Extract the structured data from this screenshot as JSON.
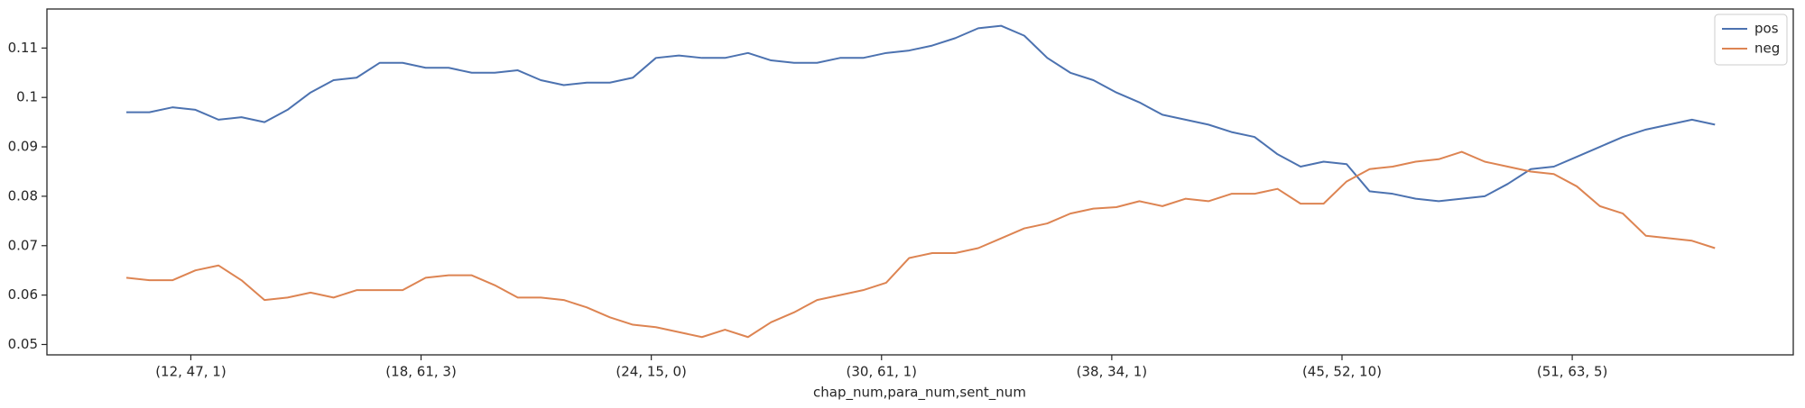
{
  "chart_data": {
    "type": "line",
    "xlabel": "chap_num,para_num,sent_num",
    "x": [
      0,
      20,
      40,
      60,
      80,
      100,
      120,
      140,
      160,
      180,
      200,
      220,
      240,
      260,
      280,
      300,
      320,
      340,
      360,
      380,
      400,
      420,
      440,
      460,
      480,
      500,
      520,
      540,
      560,
      580,
      600,
      620,
      640,
      660,
      680,
      700,
      720,
      740,
      760,
      780,
      800,
      820,
      840,
      860,
      880,
      900,
      920,
      940,
      960,
      980,
      1000,
      1020,
      1040,
      1060,
      1080,
      1100,
      1120,
      1140,
      1160,
      1180,
      1200,
      1220,
      1240,
      1260,
      1280,
      1300,
      1320,
      1340,
      1360,
      1380
    ],
    "series": [
      {
        "name": "pos",
        "color": "#4c72b0",
        "values": [
          0.097,
          0.097,
          0.098,
          0.0975,
          0.0955,
          0.096,
          0.095,
          0.0975,
          0.101,
          0.1035,
          0.104,
          0.107,
          0.107,
          0.106,
          0.106,
          0.105,
          0.105,
          0.1055,
          0.1035,
          0.1025,
          0.103,
          0.103,
          0.104,
          0.108,
          0.1085,
          0.108,
          0.108,
          0.109,
          0.1075,
          0.107,
          0.107,
          0.108,
          0.108,
          0.109,
          0.1095,
          0.1105,
          0.112,
          0.114,
          0.1145,
          0.1125,
          0.108,
          0.105,
          0.1035,
          0.101,
          0.099,
          0.0965,
          0.0955,
          0.0945,
          0.093,
          0.092,
          0.0885,
          0.086,
          0.087,
          0.0865,
          0.081,
          0.0805,
          0.0795,
          0.079,
          0.0795,
          0.08,
          0.0825,
          0.0855,
          0.086,
          0.088,
          0.09,
          0.092,
          0.0935,
          0.0945,
          0.0955,
          0.0945
        ]
      },
      {
        "name": "neg",
        "color": "#dd8452",
        "values": [
          0.0635,
          0.063,
          0.063,
          0.065,
          0.066,
          0.063,
          0.059,
          0.0595,
          0.0605,
          0.0595,
          0.061,
          0.061,
          0.061,
          0.0635,
          0.064,
          0.064,
          0.062,
          0.0595,
          0.0595,
          0.059,
          0.0575,
          0.0555,
          0.054,
          0.0535,
          0.0525,
          0.0515,
          0.053,
          0.0515,
          0.0545,
          0.0565,
          0.059,
          0.06,
          0.061,
          0.0625,
          0.0675,
          0.0685,
          0.0685,
          0.0695,
          0.0715,
          0.0735,
          0.0745,
          0.0765,
          0.0775,
          0.0778,
          0.079,
          0.078,
          0.0795,
          0.079,
          0.0805,
          0.0805,
          0.0815,
          0.0785,
          0.0785,
          0.083,
          0.0855,
          0.086,
          0.087,
          0.0875,
          0.089,
          0.087,
          0.086,
          0.085,
          0.0845,
          0.082,
          0.078,
          0.0765,
          0.072,
          0.0715,
          0.071,
          0.0695
        ]
      }
    ],
    "xlim": [
      -69,
      1448
    ],
    "xticks": [
      {
        "value": 56,
        "label": "(12, 47, 1)"
      },
      {
        "value": 256,
        "label": "(18, 61, 3)"
      },
      {
        "value": 456,
        "label": "(24, 15, 0)"
      },
      {
        "value": 656,
        "label": "(30, 61, 1)"
      },
      {
        "value": 856,
        "label": "(38, 34, 1)"
      },
      {
        "value": 1056,
        "label": "(45, 52, 10)"
      },
      {
        "value": 1256,
        "label": "(51, 63, 5)"
      }
    ],
    "ylim": [
      0.0479,
      0.1179
    ],
    "yticks": [
      0.05,
      0.06,
      0.07,
      0.08,
      0.09,
      0.1,
      0.11
    ],
    "legend": "upper right",
    "grid": false
  }
}
